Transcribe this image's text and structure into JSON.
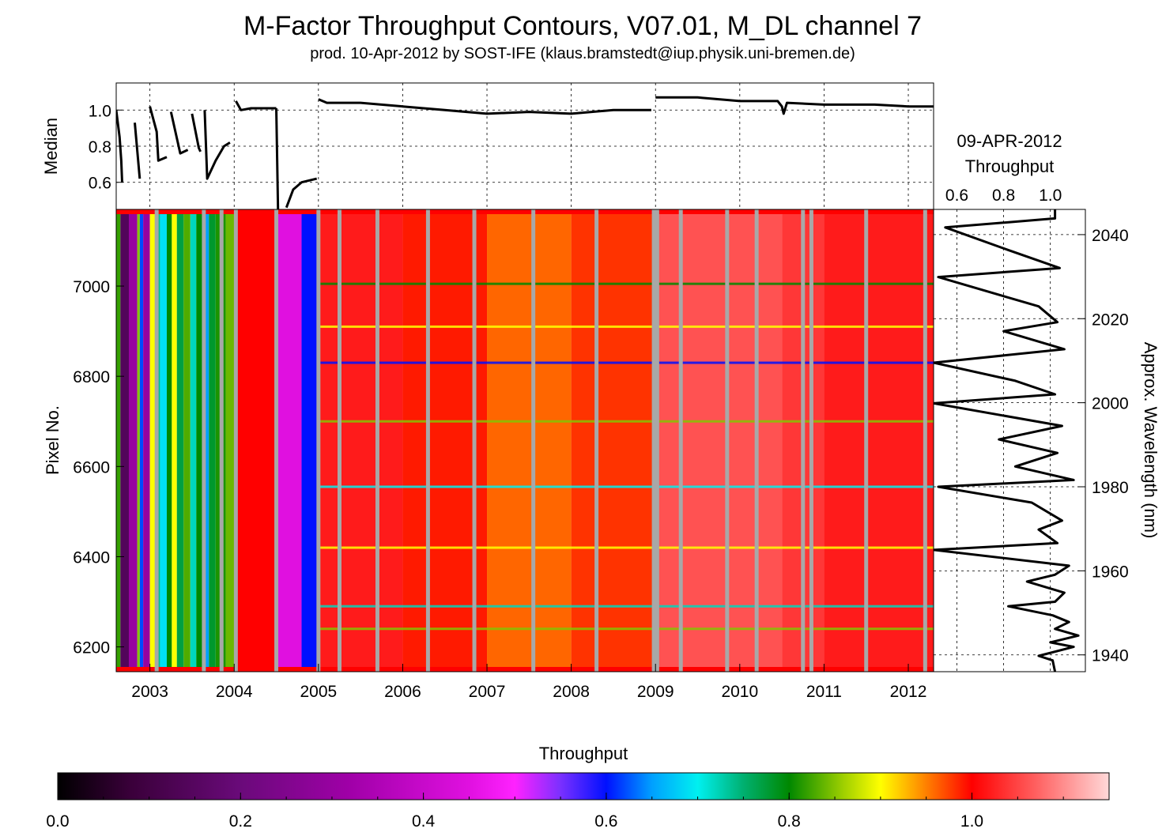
{
  "title": "M-Factor Throughput Contours, V07.01, M_DL channel 7",
  "subtitle": "prod. 10-Apr-2012 by SOST-IFE (klaus.bramstedt@iup.physik.uni-bremen.de)",
  "chart_data": [
    {
      "type": "line",
      "panel": "median",
      "ylabel": "Median",
      "ylim": [
        0.45,
        1.15
      ],
      "yticks": [
        "0.6",
        "0.8",
        "1.0"
      ],
      "xlim": [
        2002.6,
        2012.3
      ],
      "segments": [
        [
          [
            2002.6,
            1.0
          ],
          [
            2002.64,
            0.85
          ],
          [
            2002.66,
            0.72
          ],
          [
            2002.67,
            0.6
          ]
        ],
        [
          [
            2002.82,
            0.93
          ],
          [
            2002.88,
            0.62
          ]
        ],
        [
          [
            2003.0,
            1.02
          ],
          [
            2003.08,
            0.88
          ],
          [
            2003.1,
            0.72
          ],
          [
            2003.2,
            0.74
          ]
        ],
        [
          [
            2003.25,
            0.99
          ],
          [
            2003.36,
            0.76
          ],
          [
            2003.45,
            0.78
          ]
        ],
        [
          [
            2003.5,
            0.98
          ],
          [
            2003.58,
            0.79
          ],
          [
            2003.6,
            0.77
          ]
        ],
        [
          [
            2003.65,
            1.0
          ],
          [
            2003.68,
            0.62
          ],
          [
            2003.78,
            0.72
          ],
          [
            2003.88,
            0.8
          ],
          [
            2003.95,
            0.82
          ]
        ],
        [
          [
            2004.02,
            1.05
          ],
          [
            2004.08,
            1.0
          ],
          [
            2004.2,
            1.01
          ],
          [
            2004.4,
            1.01
          ],
          [
            2004.5,
            1.01
          ]
        ],
        [
          [
            2004.5,
            1.01
          ],
          [
            2004.52,
            0.45
          ]
        ],
        [
          [
            2004.62,
            0.46
          ],
          [
            2004.7,
            0.56
          ],
          [
            2004.8,
            0.6
          ],
          [
            2004.98,
            0.62
          ]
        ],
        [
          [
            2005.0,
            1.06
          ],
          [
            2005.1,
            1.04
          ],
          [
            2005.5,
            1.04
          ],
          [
            2006.0,
            1.02
          ],
          [
            2006.5,
            1.0
          ],
          [
            2007.0,
            0.98
          ],
          [
            2007.5,
            0.99
          ],
          [
            2008.0,
            0.98
          ],
          [
            2008.5,
            1.0
          ],
          [
            2008.95,
            1.0
          ]
        ],
        [
          [
            2009.0,
            1.07
          ],
          [
            2009.5,
            1.07
          ],
          [
            2010.0,
            1.05
          ],
          [
            2010.45,
            1.05
          ],
          [
            2010.5,
            1.02
          ],
          [
            2010.52,
            0.98
          ],
          [
            2010.56,
            1.04
          ],
          [
            2011.0,
            1.03
          ],
          [
            2011.3,
            1.03
          ],
          [
            2011.6,
            1.03
          ],
          [
            2012.0,
            1.02
          ],
          [
            2012.3,
            1.02
          ]
        ]
      ]
    },
    {
      "type": "heatmap",
      "panel": "contours",
      "ylabel": "Pixel No.",
      "xlim": [
        2002.6,
        2012.3
      ],
      "ylim": [
        6145,
        7170
      ],
      "xticks": [
        "2003",
        "2004",
        "2005",
        "2006",
        "2007",
        "2008",
        "2009",
        "2010",
        "2011",
        "2012"
      ],
      "yticks": [
        "6200",
        "6400",
        "6600",
        "6800",
        "7000"
      ],
      "right_axis_label": "Approx. Wavelength (nm)",
      "right_axis_ticks": [
        "1940",
        "1960",
        "1980",
        "2000",
        "2020",
        "2040"
      ],
      "right_axis_range": [
        1936,
        2046
      ],
      "time_bands": [
        {
          "from": 2002.6,
          "to": 2002.65,
          "value": 0.82
        },
        {
          "from": 2002.65,
          "to": 2002.75,
          "value": 0.14
        },
        {
          "from": 2002.75,
          "to": 2002.85,
          "value": 0.3
        },
        {
          "from": 2002.85,
          "to": 2002.88,
          "value": 0.85
        },
        {
          "from": 2002.88,
          "to": 2002.92,
          "value": 0.62
        },
        {
          "from": 2002.92,
          "to": 2003.0,
          "value": 0.3
        },
        {
          "from": 2003.0,
          "to": 2003.06,
          "value": 0.9
        },
        {
          "from": 2003.06,
          "to": 2003.12,
          "value": 0.74
        },
        {
          "from": 2003.12,
          "to": 2003.2,
          "value": 0.69
        },
        {
          "from": 2003.2,
          "to": 2003.26,
          "value": 0.8
        },
        {
          "from": 2003.26,
          "to": 2003.32,
          "value": 0.9
        },
        {
          "from": 2003.32,
          "to": 2003.4,
          "value": 0.77
        },
        {
          "from": 2003.4,
          "to": 2003.48,
          "value": 0.83
        },
        {
          "from": 2003.48,
          "to": 2003.55,
          "value": 0.72
        },
        {
          "from": 2003.55,
          "to": 2003.62,
          "value": 0.8
        },
        {
          "from": 2003.62,
          "to": 2003.7,
          "value": 0.65
        },
        {
          "from": 2003.7,
          "to": 2003.78,
          "value": 0.78
        },
        {
          "from": 2003.78,
          "to": 2003.9,
          "value": 0.81
        },
        {
          "from": 2003.9,
          "to": 2004.0,
          "value": 0.84
        },
        {
          "from": 2004.0,
          "to": 2004.5,
          "value": 1.0
        },
        {
          "from": 2004.5,
          "to": 2004.8,
          "value": 0.45
        },
        {
          "from": 2004.8,
          "to": 2004.98,
          "value": 0.6
        },
        {
          "from": 2005.0,
          "to": 2006.0,
          "value": 1.02
        },
        {
          "from": 2006.0,
          "to": 2007.0,
          "value": 0.99
        },
        {
          "from": 2007.0,
          "to": 2008.0,
          "value": 0.96
        },
        {
          "from": 2008.0,
          "to": 2009.0,
          "value": 0.98
        },
        {
          "from": 2009.0,
          "to": 2010.5,
          "value": 1.06
        },
        {
          "from": 2010.5,
          "to": 2011.0,
          "value": 1.04
        },
        {
          "from": 2011.0,
          "to": 2012.3,
          "value": 1.02
        }
      ],
      "data_gaps": [
        2003.08,
        2003.64,
        2003.85,
        2004.02,
        2004.5,
        2005.0,
        2005.25,
        2005.7,
        2006.3,
        2006.85,
        2007.55,
        2008.3,
        2008.98,
        2009.02,
        2009.3,
        2009.85,
        2010.2,
        2010.75,
        2010.85,
        2011.5,
        2012.2
      ],
      "spectral_lines": [
        {
          "pixel": 7005,
          "value": 0.8
        },
        {
          "pixel": 6910,
          "value": 0.9
        },
        {
          "pixel": 6830,
          "value": 0.6
        },
        {
          "pixel": 6700,
          "value": 0.85
        },
        {
          "pixel": 6555,
          "value": 0.7
        },
        {
          "pixel": 6420,
          "value": 0.9
        },
        {
          "pixel": 6290,
          "value": 0.72
        },
        {
          "pixel": 6240,
          "value": 0.85
        }
      ]
    },
    {
      "type": "line",
      "panel": "last-spectrum",
      "title": "09-APR-2012",
      "subtitle": "Throughput",
      "xticks": [
        "0.6",
        "0.8",
        "1.0"
      ],
      "xlim": [
        0.5,
        1.15
      ],
      "ylim": [
        6145,
        7170
      ],
      "points": [
        [
          1.02,
          6145
        ],
        [
          1.01,
          6170
        ],
        [
          0.95,
          6180
        ],
        [
          1.1,
          6200
        ],
        [
          1.0,
          6210
        ],
        [
          1.12,
          6225
        ],
        [
          1.02,
          6240
        ],
        [
          1.08,
          6255
        ],
        [
          1.01,
          6270
        ],
        [
          0.82,
          6290
        ],
        [
          1.02,
          6300
        ],
        [
          1.06,
          6320
        ],
        [
          0.9,
          6345
        ],
        [
          1.02,
          6360
        ],
        [
          1.08,
          6380
        ],
        [
          0.5,
          6415
        ],
        [
          1.03,
          6430
        ],
        [
          0.95,
          6460
        ],
        [
          1.05,
          6480
        ],
        [
          0.92,
          6520
        ],
        [
          0.52,
          6555
        ],
        [
          1.1,
          6570
        ],
        [
          0.85,
          6600
        ],
        [
          1.03,
          6630
        ],
        [
          0.78,
          6660
        ],
        [
          1.05,
          6690
        ],
        [
          0.5,
          6740
        ],
        [
          1.02,
          6760
        ],
        [
          0.85,
          6790
        ],
        [
          0.5,
          6830
        ],
        [
          1.06,
          6860
        ],
        [
          0.8,
          6900
        ],
        [
          1.03,
          6920
        ],
        [
          0.95,
          6955
        ],
        [
          0.52,
          7020
        ],
        [
          1.04,
          7040
        ],
        [
          0.82,
          7080
        ],
        [
          0.55,
          7130
        ],
        [
          1.02,
          7150
        ],
        [
          1.02,
          7170
        ]
      ]
    },
    {
      "type": "heatmap",
      "panel": "colorbar",
      "title": "Throughput",
      "range": [
        0.0,
        1.15
      ],
      "ticks": [
        "0.0",
        "0.2",
        "0.4",
        "0.6",
        "0.8",
        "1.0"
      ],
      "colors": [
        [
          0.0,
          "#000000"
        ],
        [
          0.08,
          "#3a003a"
        ],
        [
          0.2,
          "#6a0a7a"
        ],
        [
          0.32,
          "#a000a8"
        ],
        [
          0.45,
          "#e010e0"
        ],
        [
          0.5,
          "#ff22ff"
        ],
        [
          0.55,
          "#7a30ff"
        ],
        [
          0.6,
          "#0010ff"
        ],
        [
          0.65,
          "#00a0ff"
        ],
        [
          0.7,
          "#00f0f0"
        ],
        [
          0.75,
          "#00b070"
        ],
        [
          0.8,
          "#008800"
        ],
        [
          0.86,
          "#a0d000"
        ],
        [
          0.9,
          "#ffff00"
        ],
        [
          0.95,
          "#ff8000"
        ],
        [
          1.0,
          "#ff0000"
        ],
        [
          1.07,
          "#ff6060"
        ],
        [
          1.15,
          "#ffd8d8"
        ]
      ]
    }
  ]
}
